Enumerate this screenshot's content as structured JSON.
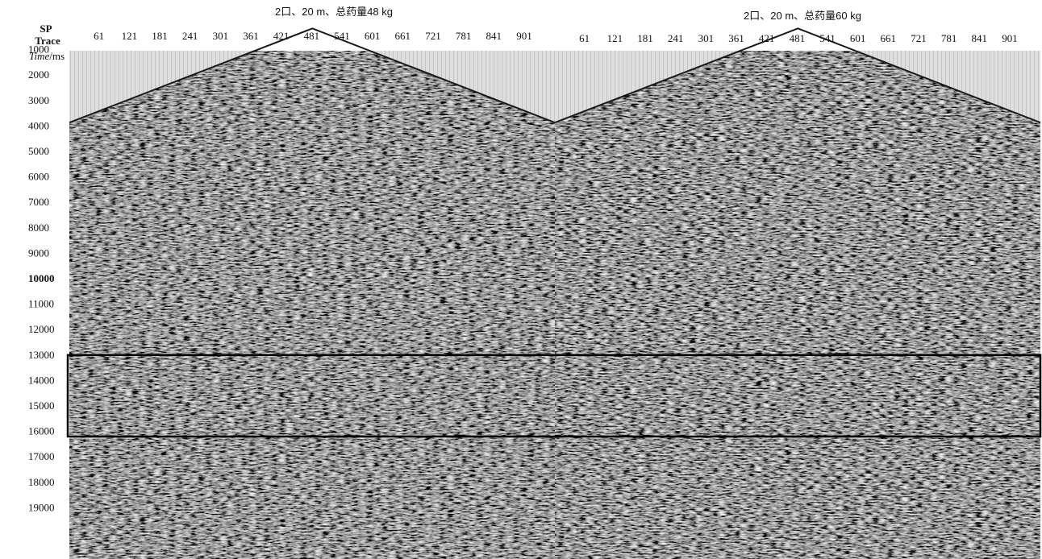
{
  "chart_data": {
    "type": "seismic_section",
    "panels": [
      {
        "title": "2口、20 m、总药量48 kg"
      },
      {
        "title": "2口、20 m、总药量60 kg"
      }
    ],
    "header_labels": {
      "sp": "SP",
      "trace": "Trace",
      "time_italic": "Time",
      "time_unit": "/ms"
    },
    "trace_ticks": [
      61,
      121,
      181,
      241,
      301,
      361,
      421,
      481,
      541,
      601,
      661,
      721,
      781,
      841,
      901
    ],
    "time_ticks": [
      1000,
      2000,
      3000,
      4000,
      5000,
      6000,
      7000,
      8000,
      9000,
      10000,
      11000,
      12000,
      13000,
      14000,
      15000,
      16000,
      17000,
      18000,
      19000
    ],
    "trace_range": [
      1,
      960
    ],
    "time_range": [
      0,
      20000
    ],
    "first_break_ms": {
      "apex_trace": 481,
      "apex": 200,
      "edges": 3900
    },
    "highlight_window_ms": [
      13000,
      16200
    ],
    "colors": {
      "noise_dark": "#3d3d3d",
      "noise_light": "#9a9a9a",
      "mute": "#d9d9d9",
      "mute_line": "#bcbcbc",
      "frame": "#000000"
    }
  }
}
